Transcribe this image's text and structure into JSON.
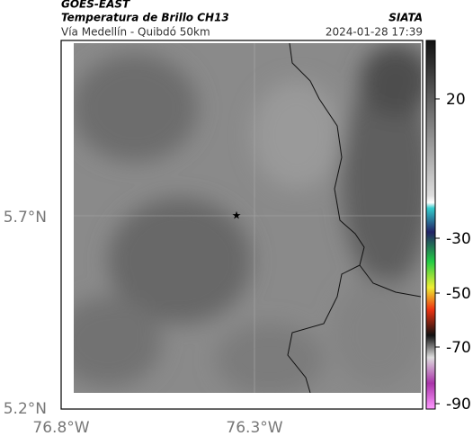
{
  "header": {
    "title": "GOES-EAST",
    "subtitle": "Temperatura de Brillo CH13",
    "location": "Vía Medellín - Quibdó 50km",
    "source": "SIATA",
    "datetime": "2024-01-28 17:39"
  },
  "axes": {
    "y_labels": [
      "5.7°N",
      "5.2°N"
    ],
    "x_labels": [
      "76.8°W",
      "76.3°W"
    ]
  },
  "colorbar": {
    "ticks": [
      20,
      -30,
      -50,
      -70,
      -90
    ]
  }
}
